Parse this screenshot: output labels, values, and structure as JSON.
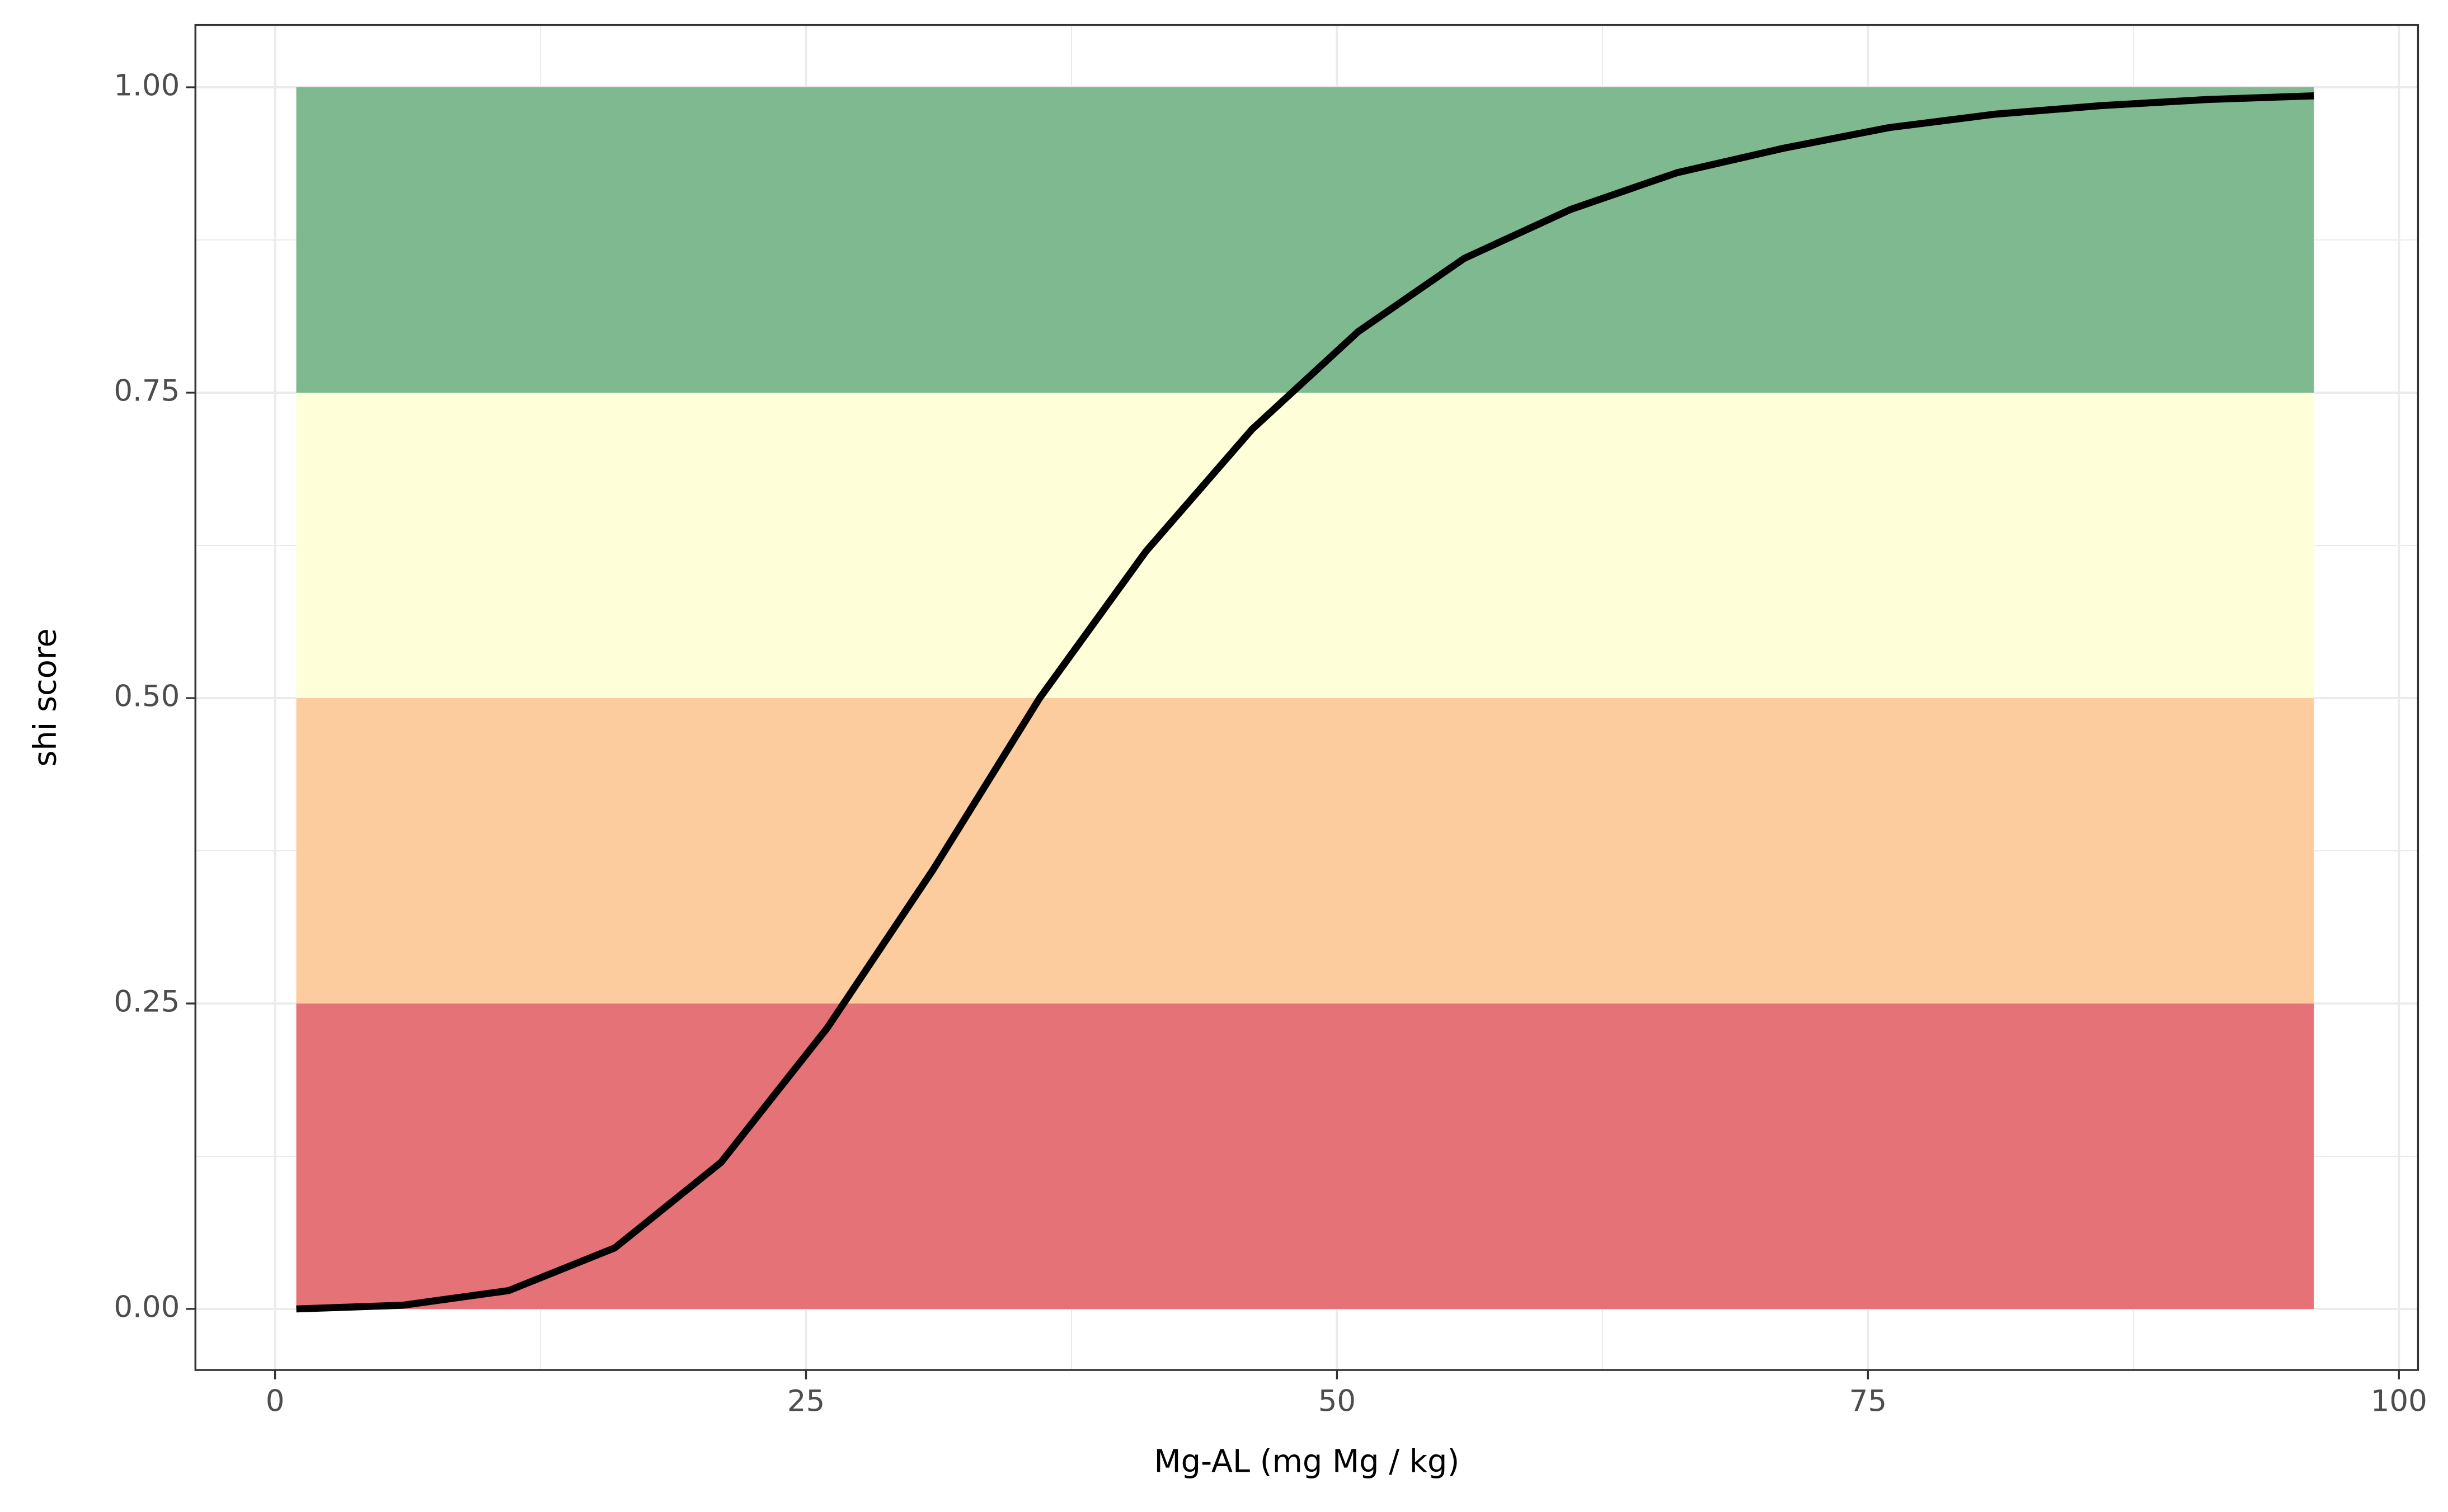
{
  "chart_data": {
    "type": "line",
    "xlabel": "Mg-AL (mg Mg / kg)",
    "ylabel": "shi score",
    "x": [
      1,
      6,
      11,
      16,
      21,
      26,
      31,
      36,
      41,
      46,
      51,
      56,
      61,
      66,
      71,
      76,
      81,
      86,
      91,
      96
    ],
    "series": [
      {
        "color": "#000000",
        "values": [
          0,
          0.003,
          0.015,
          0.05,
          0.12,
          0.23,
          0.36,
          0.5,
          0.62,
          0.72,
          0.8,
          0.86,
          0.9,
          0.93,
          0.95,
          0.967,
          0.978,
          0.985,
          0.99,
          0.993
        ]
      }
    ],
    "bands": [
      {
        "xmin": 1,
        "xmax": 96,
        "ymin": 0,
        "ymax": 0.25,
        "color": "#e57277"
      },
      {
        "xmin": 1,
        "xmax": 96,
        "ymin": 0.25,
        "ymax": 0.5,
        "color": "#fccc9f"
      },
      {
        "xmin": 1,
        "xmax": 96,
        "ymin": 0.5,
        "ymax": 0.75,
        "color": "#fefed8"
      },
      {
        "xmin": 1,
        "xmax": 96,
        "ymin": 0.75,
        "ymax": 1,
        "color": "#7fb98f"
      }
    ],
    "xlim": [
      -3.75,
      100.9
    ],
    "ylim": [
      -0.05,
      1.051
    ],
    "xticks": [
      0,
      25,
      50,
      75,
      100
    ],
    "yticks": [
      {
        "value": 0,
        "label": "0.00"
      },
      {
        "value": 0.25,
        "label": "0.25"
      },
      {
        "value": 0.5,
        "label": "0.50"
      },
      {
        "value": 0.75,
        "label": "0.75"
      },
      {
        "value": 1,
        "label": "1.00"
      }
    ],
    "grid": true
  }
}
